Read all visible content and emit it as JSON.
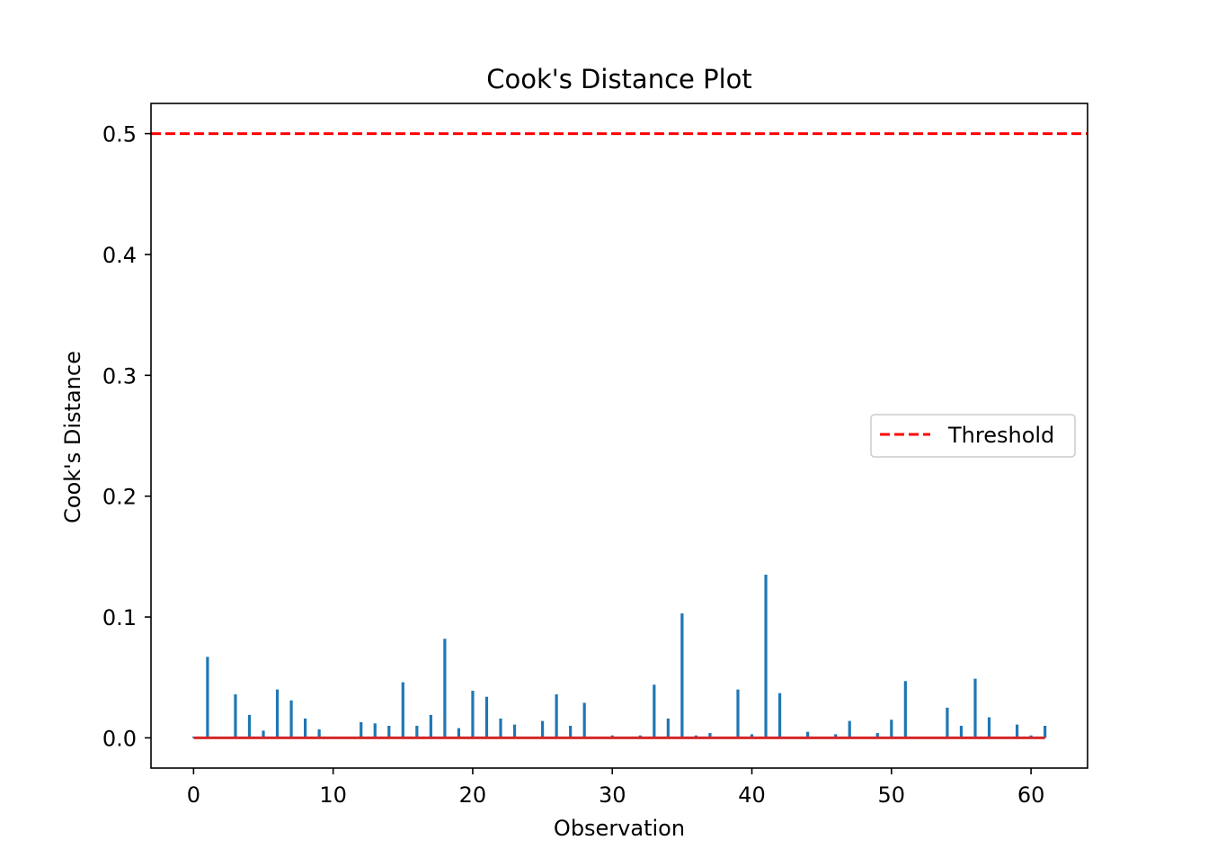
{
  "chart_data": {
    "type": "stem",
    "title": "Cook's Distance Plot",
    "xlabel": "Observation",
    "ylabel": "Cook's Distance",
    "xlim": [
      -3.05,
      64.05
    ],
    "ylim": [
      -0.025,
      0.525
    ],
    "xticks": [
      0,
      10,
      20,
      30,
      40,
      50,
      60
    ],
    "yticks": [
      0.0,
      0.1,
      0.2,
      0.3,
      0.4,
      0.5
    ],
    "ytick_labels": [
      "0.0",
      "0.1",
      "0.2",
      "0.3",
      "0.4",
      "0.5"
    ],
    "stem_color": "#1f77b4",
    "baseline_color": "#d62728",
    "threshold": {
      "name": "Threshold",
      "value": 0.5,
      "color": "#ff0000",
      "style": "dashed"
    },
    "legend_position": "center-right",
    "x": [
      0,
      1,
      2,
      3,
      4,
      5,
      6,
      7,
      8,
      9,
      10,
      11,
      12,
      13,
      14,
      15,
      16,
      17,
      18,
      19,
      20,
      21,
      22,
      23,
      24,
      25,
      26,
      27,
      28,
      29,
      30,
      31,
      32,
      33,
      34,
      35,
      36,
      37,
      38,
      39,
      40,
      41,
      42,
      43,
      44,
      45,
      46,
      47,
      48,
      49,
      50,
      51,
      52,
      53,
      54,
      55,
      56,
      57,
      58,
      59,
      60,
      61
    ],
    "values": [
      0.001,
      0.067,
      0.0005,
      0.036,
      0.019,
      0.006,
      0.04,
      0.031,
      0.016,
      0.007,
      0.001,
      0.0005,
      0.013,
      0.012,
      0.01,
      0.046,
      0.01,
      0.019,
      0.082,
      0.008,
      0.039,
      0.034,
      0.016,
      0.011,
      0.0005,
      0.014,
      0.036,
      0.01,
      0.029,
      0.0005,
      0.002,
      0.0005,
      0.002,
      0.044,
      0.016,
      0.103,
      0.002,
      0.004,
      0.0005,
      0.04,
      0.003,
      0.135,
      0.037,
      0.001,
      0.005,
      0.0005,
      0.003,
      0.014,
      0.001,
      0.004,
      0.015,
      0.047,
      0.0005,
      0.0005,
      0.025,
      0.01,
      0.049,
      0.017,
      0.0005,
      0.011,
      0.002,
      0.01
    ]
  }
}
